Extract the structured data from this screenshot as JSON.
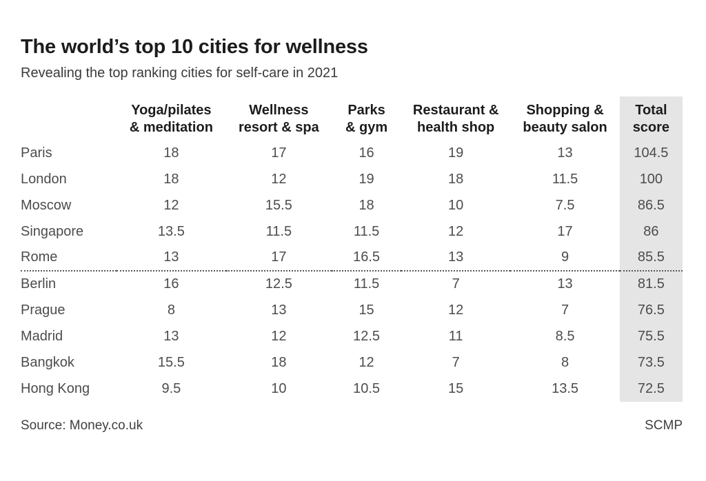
{
  "page": {
    "title": "The world’s top 10 cities for wellness",
    "subtitle": "Revealing the top ranking cities for self-care in 2021",
    "source_label": "Source: Money.co.uk",
    "credit_label": "SCMP"
  },
  "colors": {
    "title_text": "#1c1c1c",
    "body_text": "#4c4c4c",
    "highlight_column_bg": "#e5e5e5",
    "dotted_divider": "#555555"
  },
  "chart_data": {
    "type": "table",
    "title": "The world’s top 10 cities for wellness",
    "subtitle": "Revealing the top ranking cities for self-care in 2021",
    "column_headers": [
      {
        "line1": "Yoga/pilates",
        "line2": "& meditation"
      },
      {
        "line1": "Wellness",
        "line2": "resort & spa"
      },
      {
        "line1": "Parks",
        "line2": "& gym"
      },
      {
        "line1": "Restaurant &",
        "line2": "health shop"
      },
      {
        "line1": "Shopping &",
        "line2": "beauty salon"
      },
      {
        "line1": "Total",
        "line2": "score"
      }
    ],
    "highlighted_column": "Total score",
    "dotted_divider_after_row": 5,
    "rows": [
      {
        "city": "Paris",
        "values": [
          "18",
          "17",
          "16",
          "19",
          "13",
          "104.5"
        ]
      },
      {
        "city": "London",
        "values": [
          "18",
          "12",
          "19",
          "18",
          "11.5",
          "100"
        ]
      },
      {
        "city": "Moscow",
        "values": [
          "12",
          "15.5",
          "18",
          "10",
          "7.5",
          "86.5"
        ]
      },
      {
        "city": "Singapore",
        "values": [
          "13.5",
          "11.5",
          "11.5",
          "12",
          "17",
          "86"
        ]
      },
      {
        "city": "Rome",
        "values": [
          "13",
          "17",
          "16.5",
          "13",
          "9",
          "85.5"
        ]
      },
      {
        "city": "Berlin",
        "values": [
          "16",
          "12.5",
          "11.5",
          "7",
          "13",
          "81.5"
        ]
      },
      {
        "city": "Prague",
        "values": [
          "8",
          "13",
          "15",
          "12",
          "7",
          "76.5"
        ]
      },
      {
        "city": "Madrid",
        "values": [
          "13",
          "12",
          "12.5",
          "11",
          "8.5",
          "75.5"
        ]
      },
      {
        "city": "Bangkok",
        "values": [
          "15.5",
          "18",
          "12",
          "7",
          "8",
          "73.5"
        ]
      },
      {
        "city": "Hong Kong",
        "values": [
          "9.5",
          "10",
          "10.5",
          "15",
          "13.5",
          "72.5"
        ]
      }
    ],
    "source": "Money.co.uk",
    "credit": "SCMP"
  }
}
